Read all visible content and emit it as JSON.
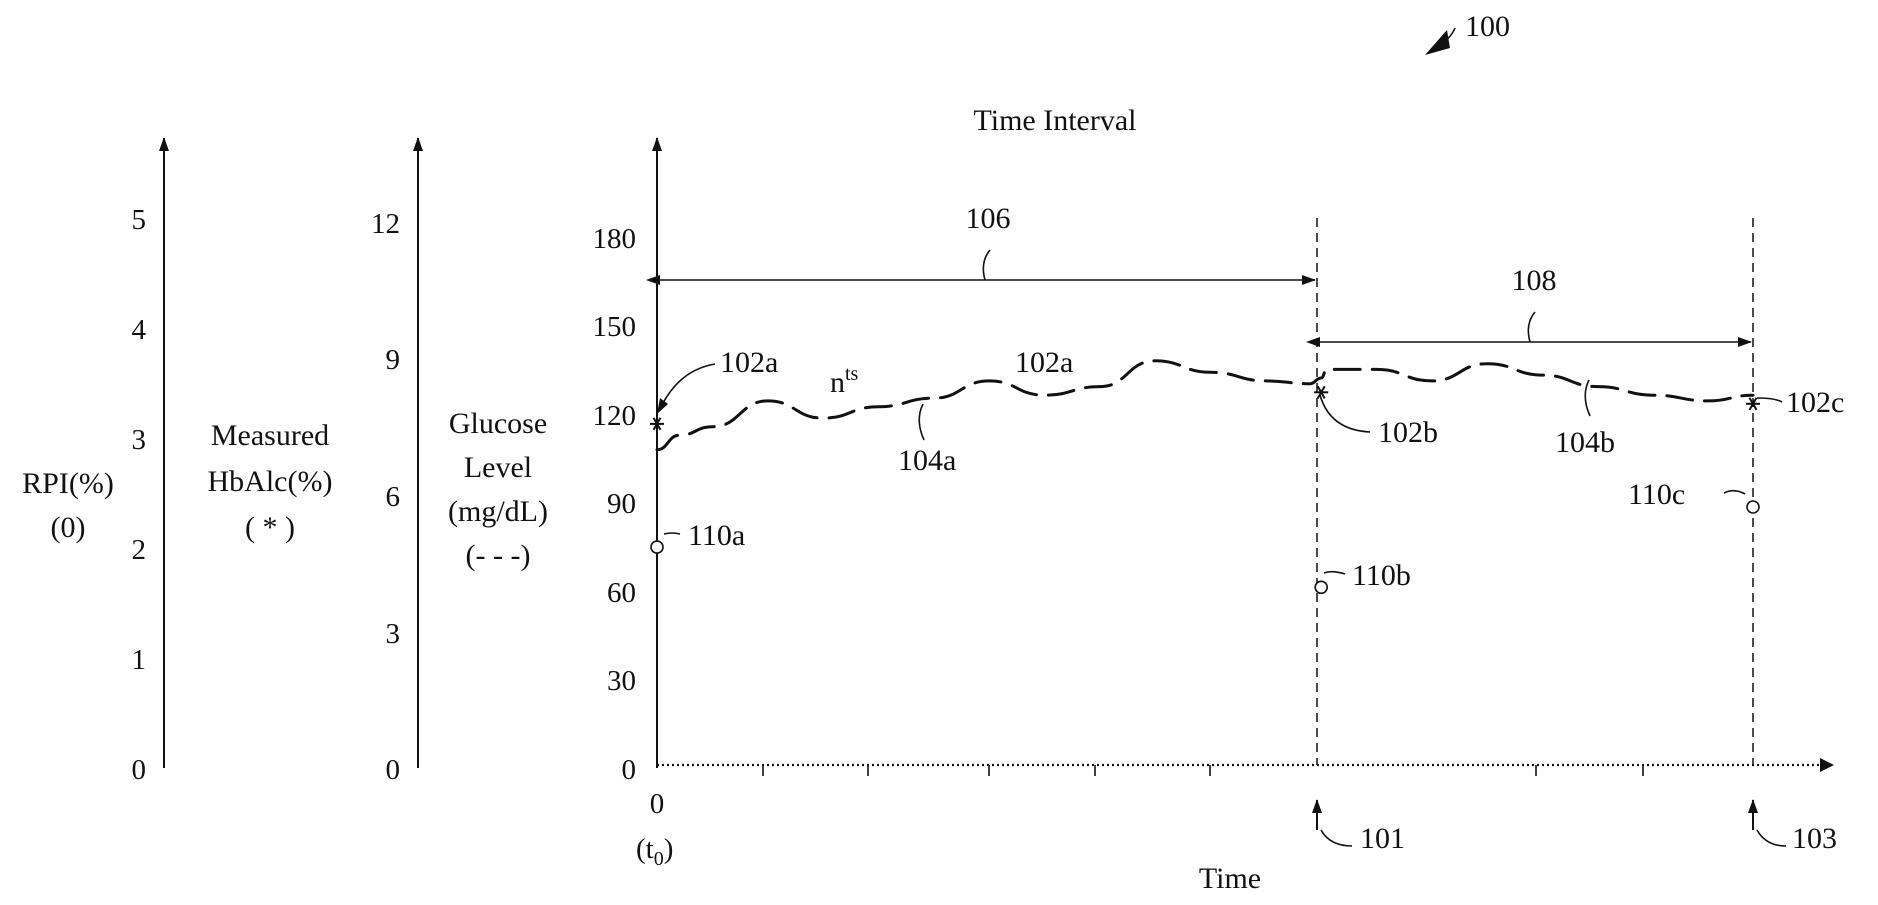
{
  "figure_ref": "100",
  "title": "Time Interval",
  "x_axis": {
    "label": "Time",
    "zero": "0",
    "t0": "(t",
    "t0_sub": "0",
    "t0_close": ")"
  },
  "axes": {
    "rpi": {
      "line1": "RPI(%)",
      "line2": "(0)",
      "ticks": [
        "0",
        "1",
        "2",
        "3",
        "4",
        "5"
      ]
    },
    "hba1c": {
      "line1": "Measured",
      "line2": "HbAlc(%)",
      "line3": "( * )",
      "ticks": [
        "0",
        "3",
        "6",
        "9",
        "12"
      ]
    },
    "glucose": {
      "line1": "Glucose",
      "line2": "Level",
      "line3": "(mg/dL)",
      "line4": "(- - -)",
      "ticks": [
        "0",
        "30",
        "60",
        "90",
        "120",
        "150",
        "180"
      ]
    }
  },
  "refs": {
    "r101": "101",
    "r103": "103",
    "r104a": "104a",
    "r104b": "104b",
    "r106": "106",
    "r108": "108",
    "r102a_left": "102a",
    "r102a_mid": "102a",
    "r102b": "102b",
    "r102c": "102c",
    "r110a": "110a",
    "r110b": "110b",
    "r110c": "110c",
    "nts_base": "n",
    "nts_sup": "ts"
  },
  "chart_data": {
    "type": "line",
    "title": "Time Interval",
    "xlabel": "Time",
    "ylabel": "Glucose Level (mg/dL)",
    "ylim": [
      0,
      180
    ],
    "series": [
      {
        "name": "Glucose Level (mg/dL)",
        "style": "dashed",
        "x": [
          0,
          2,
          5,
          10,
          15,
          20,
          25,
          30,
          35,
          40,
          45,
          50,
          55,
          59,
          60,
          60.5,
          65,
          70,
          75,
          80,
          85,
          90,
          95,
          99
        ],
        "values": [
          110,
          115,
          118,
          127,
          121,
          125,
          128,
          134,
          129,
          132,
          141,
          137,
          134,
          133,
          135,
          138,
          138,
          134,
          140,
          136,
          132,
          129,
          127,
          129
        ]
      }
    ],
    "measured_hba1c_points": [
      {
        "ref": "102a",
        "x": 0,
        "glucose_equiv": 119
      },
      {
        "ref": "102b",
        "x": 60,
        "glucose_equiv": 130
      },
      {
        "ref": "102c",
        "x": 99,
        "glucose_equiv": 126
      }
    ],
    "rpi_points": [
      {
        "ref": "110a",
        "x": 0,
        "glucose_equiv": 76
      },
      {
        "ref": "110b",
        "x": 60,
        "glucose_equiv": 62
      },
      {
        "ref": "110c",
        "x": 99,
        "glucose_equiv": 90
      }
    ],
    "events": [
      {
        "ref": "101",
        "x": 60
      },
      {
        "ref": "103",
        "x": 99
      }
    ]
  }
}
